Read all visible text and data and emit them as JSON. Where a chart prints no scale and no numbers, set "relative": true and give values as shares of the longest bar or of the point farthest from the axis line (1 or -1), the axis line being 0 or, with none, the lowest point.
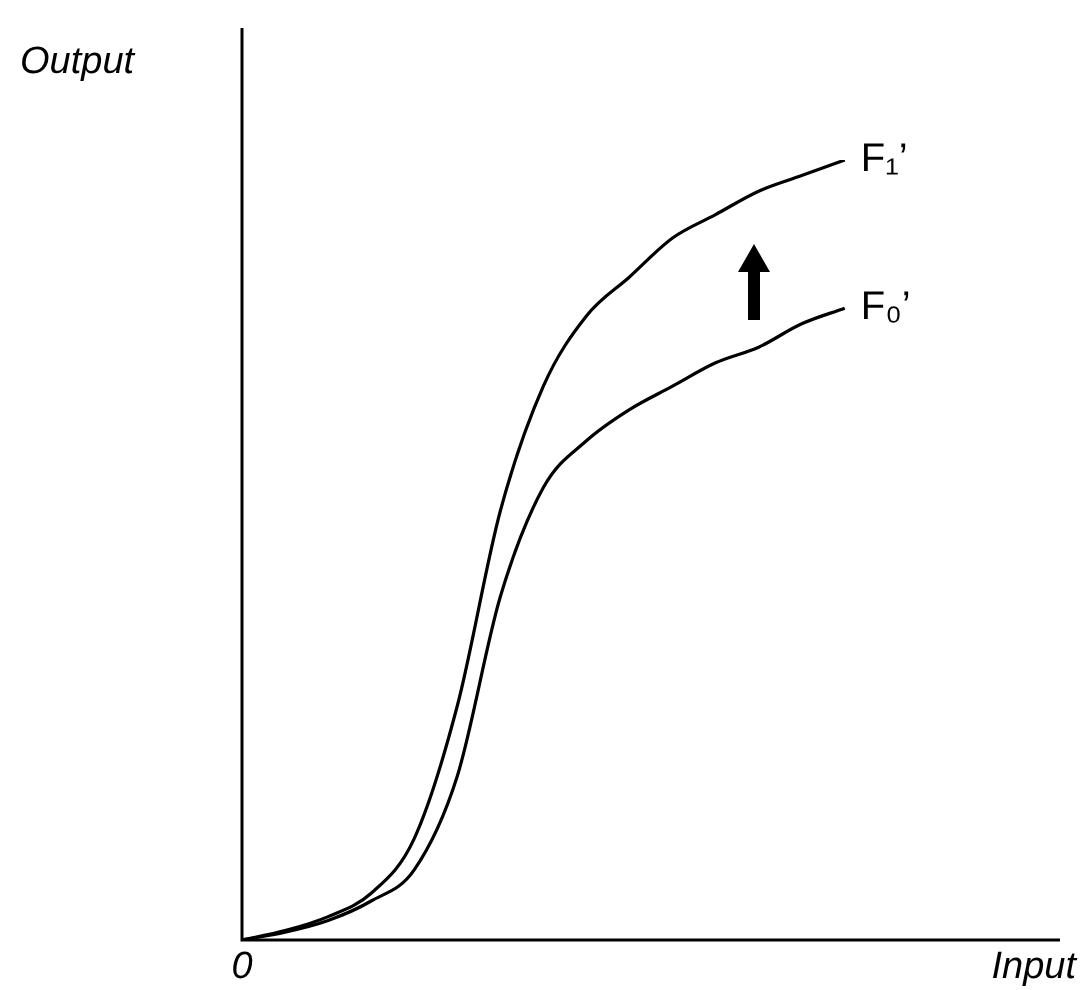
{
  "chart_data": {
    "type": "line",
    "relative": true,
    "ylabel": "Output",
    "xlabel": "Input",
    "annotations": [
      "0"
    ],
    "marker": "none",
    "categories": [
      null,
      null,
      null,
      null,
      null,
      null,
      null,
      null,
      null,
      null,
      null,
      null,
      null,
      null,
      null,
      null,
      null,
      null,
      null,
      null
    ],
    "series": [
      {
        "name": "F₁’",
        "color": "#000000",
        "values": [
          0,
          0.012,
          0.03,
          0.06,
          0.13,
          0.3,
          0.55,
          0.71,
          0.8,
          0.85,
          0.9,
          0.93,
          0.96,
          0.98,
          1,
          null,
          null,
          null,
          null,
          null
        ]
      },
      {
        "name": "F₀’",
        "color": "#000000",
        "values": [
          0,
          0.01,
          0.025,
          0.05,
          0.09,
          0.21,
          0.44,
          0.58,
          0.64,
          0.68,
          0.71,
          0.74,
          0.76,
          0.79,
          0.81,
          null,
          null,
          null,
          null,
          null
        ]
      }
    ]
  }
}
